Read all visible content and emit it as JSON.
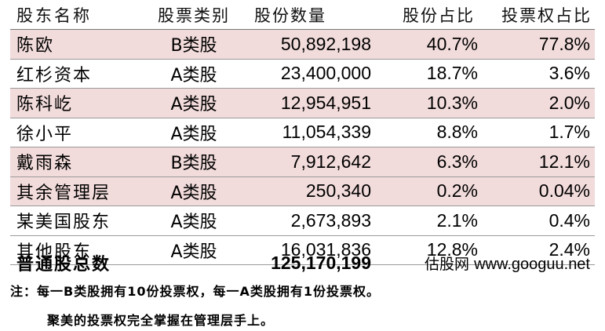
{
  "headers": {
    "name": "股东名称",
    "class": "股票类别",
    "shares": "股份数量",
    "pct": "股份占比",
    "vote": "投票权占比"
  },
  "rows": [
    {
      "name": "陈欧",
      "class": "B类股",
      "shares": "50,892,198",
      "pct": "40.7%",
      "vote": "77.8%"
    },
    {
      "name": "红杉资本",
      "class": "A类股",
      "shares": "23,400,000",
      "pct": "18.7%",
      "vote": "3.6%"
    },
    {
      "name": "陈科屹",
      "class": "A类股",
      "shares": "12,954,951",
      "pct": "10.3%",
      "vote": "2.0%"
    },
    {
      "name": "徐小平",
      "class": "A类股",
      "shares": "11,054,339",
      "pct": "8.8%",
      "vote": "1.7%"
    },
    {
      "name": "戴雨森",
      "class": "B类股",
      "shares": "7,912,642",
      "pct": "6.3%",
      "vote": "12.1%"
    },
    {
      "name": "其余管理层",
      "class": "A类股",
      "shares": "250,340",
      "pct": "0.2%",
      "vote": "0.04%"
    },
    {
      "name": "某美国股东",
      "class": "A类股",
      "shares": "2,673,893",
      "pct": "2.1%",
      "vote": "0.4%"
    },
    {
      "name": "其他股东",
      "class": "A类股",
      "shares": "16,031,836",
      "pct": "12.8%",
      "vote": "2.4%"
    }
  ],
  "total": {
    "label": "普通股总数",
    "value": "125,170,199"
  },
  "source": {
    "name": "估股网",
    "url": "www.googuu.net"
  },
  "notes": {
    "line1": "注：每一B类股拥有10份投票权，每一A类股拥有1份投票权。",
    "line2": "聚美的投票权完全掌握在管理层手上。"
  },
  "colors": {
    "shaded_row": "#f2dcdb"
  }
}
